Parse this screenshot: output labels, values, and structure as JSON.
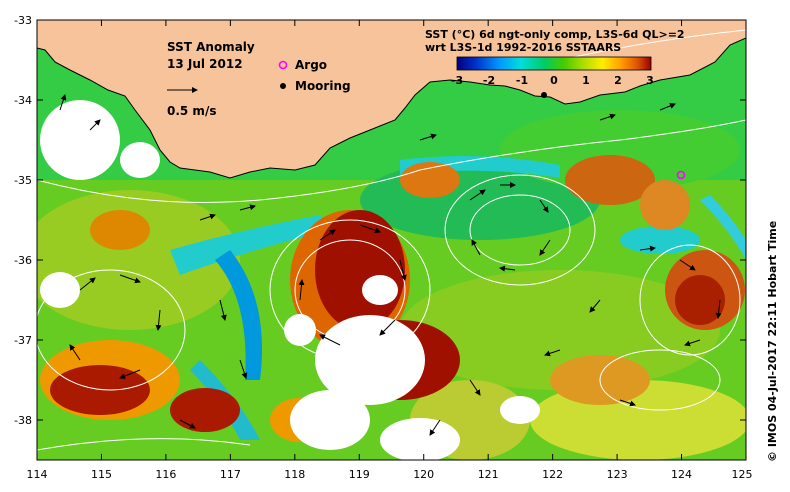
{
  "map": {
    "title": "SST Anomaly",
    "date": "13 Jul 2012",
    "scale_label": "0.5 m/s",
    "legend": {
      "argo_label": "Argo",
      "mooring_label": "Mooring",
      "argo_color": "#ff00ff",
      "mooring_color": "#000000"
    },
    "product": {
      "line1": "SST (°C) 6d ngt-only comp, L3S-6d QL>=2",
      "line2": "wrt L3S-1d 1992-2016 SSTAARS"
    },
    "colorbar": {
      "ticks": [
        "-3",
        "-2",
        "-1",
        "0",
        "1",
        "2",
        "3"
      ],
      "min": -3,
      "max": 3,
      "colors": [
        "#000080",
        "#0033cc",
        "#0099ff",
        "#00dddd",
        "#00cc66",
        "#44cc00",
        "#aadd00",
        "#ffee00",
        "#ff9900",
        "#dd5500",
        "#990000"
      ]
    },
    "x_ticks": [
      "114",
      "115",
      "116",
      "117",
      "118",
      "119",
      "120",
      "121",
      "122",
      "123",
      "124",
      "125"
    ],
    "y_ticks": [
      "-33",
      "-34",
      "-35",
      "-36",
      "-37",
      "-38"
    ],
    "lon_range": [
      114,
      125
    ],
    "lat_range": [
      -38.5,
      -33
    ],
    "land_color": "#f7c39a",
    "credit": "© IMOS 04-Jul-2017 22:11 Hobart Time"
  }
}
